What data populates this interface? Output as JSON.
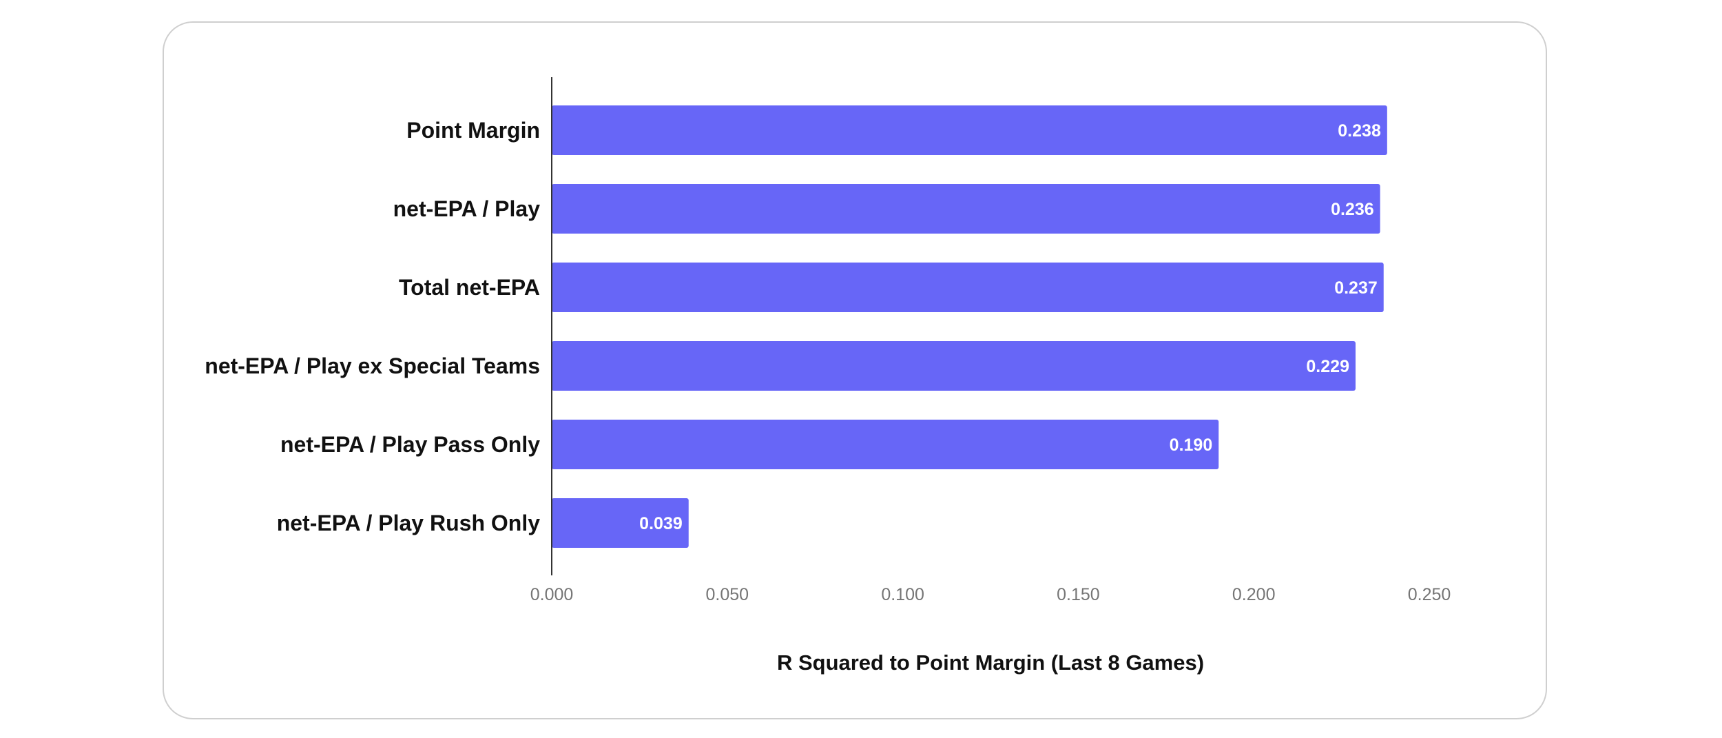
{
  "chart_data": {
    "type": "bar",
    "orientation": "horizontal",
    "categories": [
      "Point Margin",
      "net-EPA / Play",
      "Total net-EPA",
      "net-EPA / Play ex Special Teams",
      "net-EPA / Play Pass Only",
      "net-EPA / Play Rush Only"
    ],
    "values": [
      0.238,
      0.236,
      0.237,
      0.229,
      0.19,
      0.039
    ],
    "data_labels": [
      "0.238",
      "0.236",
      "0.237",
      "0.229",
      "0.190",
      "0.039"
    ],
    "xlabel": "R Squared to Point Margin (Last 8 Games)",
    "ylabel": "",
    "xlim": [
      0,
      0.25
    ],
    "xticks": [
      0,
      0.05,
      0.1,
      0.15,
      0.2,
      0.25
    ],
    "xtick_labels": [
      "0.000",
      "0.050",
      "0.100",
      "0.150",
      "0.200",
      "0.250"
    ],
    "grid": false,
    "legend": "none",
    "bar_color": "#6766f7"
  }
}
